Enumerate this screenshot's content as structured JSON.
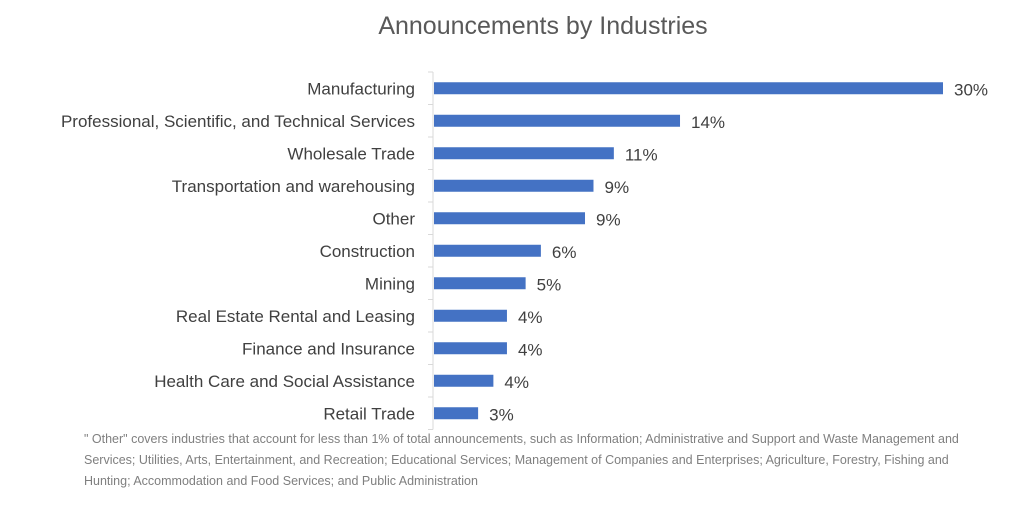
{
  "chart_data": {
    "type": "bar",
    "orientation": "horizontal",
    "title": "Announcements by Industries",
    "categories": [
      "Manufacturing",
      "Professional, Scientific, and Technical Services",
      "Wholesale Trade",
      "Transportation and warehousing",
      "Other",
      "Construction",
      "Mining",
      "Real Estate Rental and Leasing",
      "Finance and Insurance",
      "Health Care and Social Assistance",
      "Retail Trade"
    ],
    "values": [
      30,
      14.5,
      10.6,
      9.4,
      8.9,
      6.3,
      5.4,
      4.3,
      4.3,
      3.5,
      2.6
    ],
    "data_labels": [
      "30%",
      "14%",
      "11%",
      "9%",
      "9%",
      "6%",
      "5%",
      "4%",
      "4%",
      "4%",
      "3%"
    ],
    "xlim": [
      0,
      30
    ],
    "grid": false,
    "legend": "none",
    "bar_color": "#4472c4",
    "footnote": "\" Other\" covers industries that account for less than 1% of total announcements, such as Information; Administrative and Support and Waste Management and Services; Utilities, Arts, Entertainment, and Recreation; Educational Services; Management of Companies and Enterprises; Agriculture, Forestry, Fishing and Hunting; Accommodation and Food Services; and Public Administration"
  }
}
